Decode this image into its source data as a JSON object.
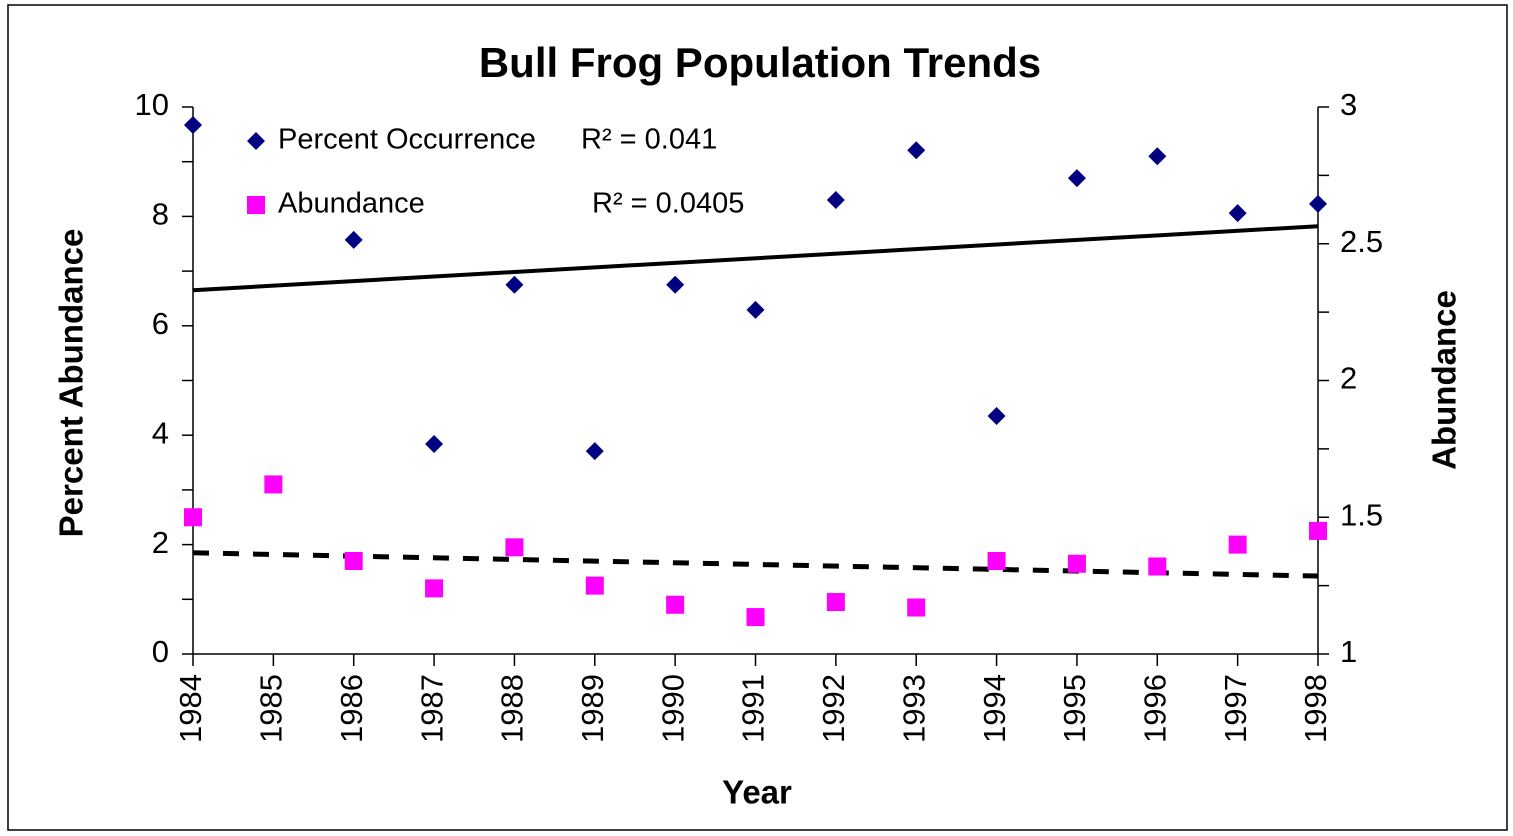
{
  "chart_data": {
    "type": "scatter",
    "title": "Bull Frog Population Trends",
    "xlabel": "Year",
    "ylabel": "Percent Abundance",
    "y2label": "Abundance",
    "x": [
      1984,
      1985,
      1986,
      1987,
      1988,
      1989,
      1990,
      1991,
      1992,
      1993,
      1994,
      1995,
      1996,
      1997,
      1998
    ],
    "xlim": [
      1984,
      1998
    ],
    "xticks": [
      1984,
      1985,
      1986,
      1987,
      1988,
      1989,
      1990,
      1991,
      1992,
      1993,
      1994,
      1995,
      1996,
      1997,
      1998
    ],
    "ylim": [
      0,
      10
    ],
    "yticks": [
      0,
      2,
      4,
      6,
      8,
      10
    ],
    "yminorticks": [
      1,
      3,
      5,
      7,
      9
    ],
    "y2lim": [
      1,
      3
    ],
    "y2ticks": [
      1,
      1.5,
      2,
      2.5,
      3
    ],
    "y2minorticks": [
      1.25,
      1.75,
      2.25,
      2.75
    ],
    "series": [
      {
        "name": "Percent Occurrence",
        "color": "#000080",
        "marker": "diamond",
        "axis": "y",
        "values": [
          9.67,
          null,
          7.57,
          3.84,
          6.75,
          3.71,
          6.75,
          6.29,
          8.3,
          9.21,
          4.35,
          8.7,
          9.1,
          8.06,
          8.23
        ]
      },
      {
        "name": "Abundance",
        "color": "#ff00ff",
        "marker": "square",
        "axis": "y2",
        "values": [
          1.5,
          1.62,
          1.34,
          1.24,
          1.39,
          1.25,
          1.18,
          1.135,
          1.19,
          1.17,
          1.34,
          1.33,
          1.32,
          1.4,
          1.45
        ]
      }
    ],
    "trendlines": [
      {
        "label": "R² = 0.041",
        "axis": "y",
        "style": "solid",
        "x": [
          1984,
          1998
        ],
        "values": [
          6.65,
          7.82
        ]
      },
      {
        "label": "R² = 0.0405",
        "axis": "y2",
        "style": "dashed",
        "x": [
          1984,
          1998
        ],
        "values": [
          1.37,
          1.285
        ]
      }
    ]
  }
}
